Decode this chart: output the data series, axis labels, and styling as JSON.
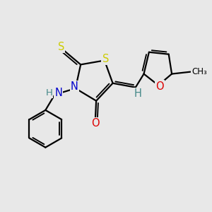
{
  "fig_bg": "#e8e8e8",
  "bond_color": "#000000",
  "bond_lw": 1.6,
  "atom_colors": {
    "S_yellow": "#cccc00",
    "N_blue": "#0000cc",
    "O_red": "#dd0000",
    "H_gray": "#448888",
    "C_black": "#000000"
  },
  "xlim": [
    0,
    10
  ],
  "ylim": [
    0,
    10
  ],
  "font_size": 10.5
}
